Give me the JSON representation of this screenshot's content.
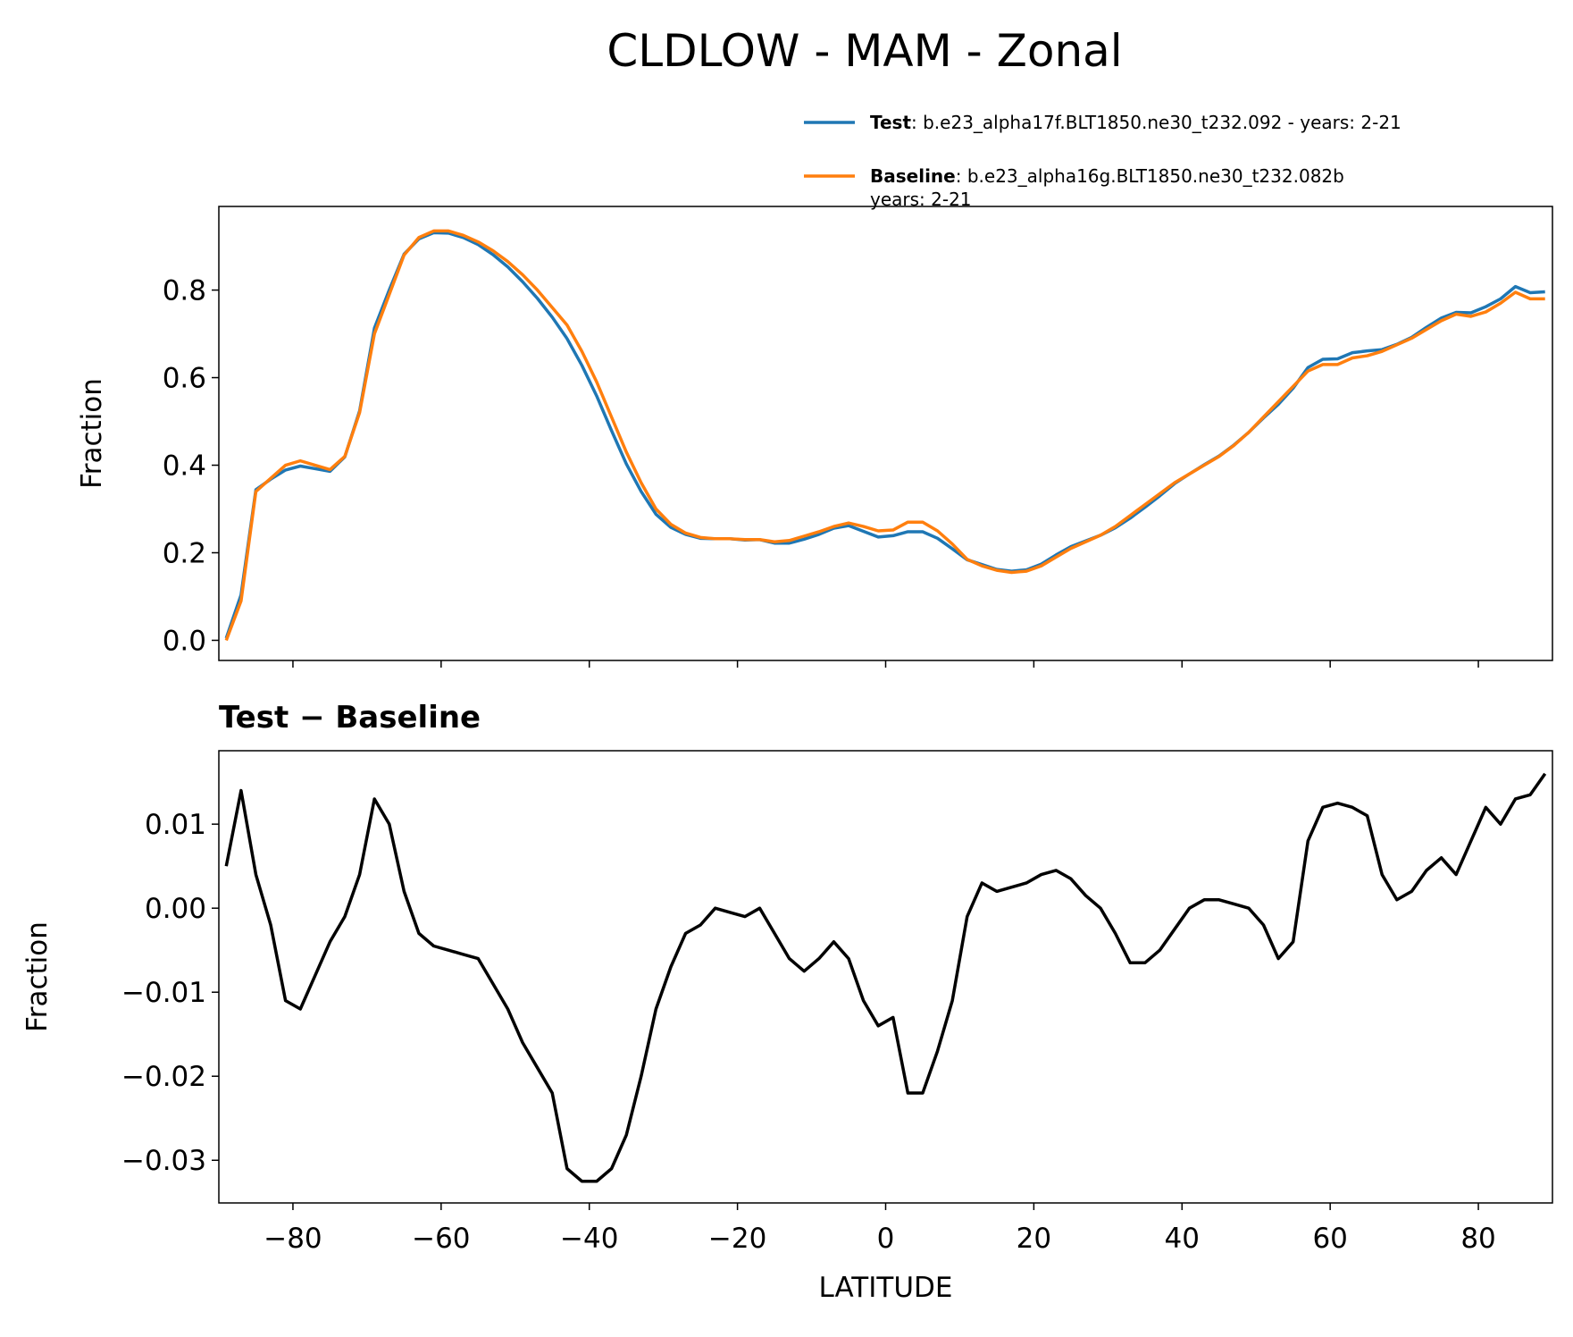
{
  "suptitle": "CLDLOW - MAM - Zonal",
  "chart_data": [
    {
      "type": "line",
      "ylabel": "Fraction",
      "x": [
        -89,
        -87,
        -85,
        -83,
        -81,
        -79,
        -77,
        -75,
        -73,
        -71,
        -69,
        -67,
        -65,
        -63,
        -61,
        -59,
        -57,
        -55,
        -53,
        -51,
        -49,
        -47,
        -45,
        -43,
        -41,
        -39,
        -37,
        -35,
        -33,
        -31,
        -29,
        -27,
        -25,
        -23,
        -21,
        -19,
        -17,
        -15,
        -13,
        -11,
        -9,
        -7,
        -5,
        -3,
        -1,
        1,
        3,
        5,
        7,
        9,
        11,
        13,
        15,
        17,
        19,
        21,
        23,
        25,
        27,
        29,
        31,
        33,
        35,
        37,
        39,
        41,
        43,
        45,
        47,
        49,
        51,
        53,
        55,
        57,
        59,
        61,
        63,
        65,
        67,
        69,
        71,
        73,
        75,
        77,
        79,
        81,
        83,
        85,
        87,
        89
      ],
      "series": [
        {
          "name": "Test",
          "label_lines": [
            ": b.e23_alpha17f.BLT1850.ne30_t232.092 - years: 2-21"
          ],
          "color": "#1f77b4",
          "values": [
            0.005,
            0.104,
            0.344,
            0.368,
            0.389,
            0.398,
            0.392,
            0.386,
            0.419,
            0.524,
            0.713,
            0.8,
            0.882,
            0.917,
            0.931,
            0.93,
            0.92,
            0.904,
            0.881,
            0.853,
            0.819,
            0.781,
            0.738,
            0.689,
            0.628,
            0.558,
            0.479,
            0.403,
            0.34,
            0.288,
            0.258,
            0.242,
            0.233,
            0.232,
            0.232,
            0.229,
            0.23,
            0.222,
            0.222,
            0.231,
            0.242,
            0.256,
            0.262,
            0.249,
            0.236,
            0.239,
            0.248,
            0.248,
            0.233,
            0.209,
            0.184,
            0.173,
            0.162,
            0.158,
            0.161,
            0.174,
            0.195,
            0.214,
            0.227,
            0.24,
            0.257,
            0.279,
            0.304,
            0.33,
            0.358,
            0.38,
            0.401,
            0.421,
            0.446,
            0.475,
            0.508,
            0.539,
            0.576,
            0.623,
            0.642,
            0.643,
            0.657,
            0.661,
            0.664,
            0.676,
            0.692,
            0.715,
            0.736,
            0.749,
            0.748,
            0.762,
            0.78,
            0.808,
            0.794,
            0.796
          ]
        },
        {
          "name": "Baseline",
          "label_lines": [
            ": b.e23_alpha16g.BLT1850.ne30_t232.082b",
            "years: 2-21"
          ],
          "color": "#ff7f0e",
          "values": [
            0.0,
            0.09,
            0.34,
            0.37,
            0.4,
            0.41,
            0.4,
            0.39,
            0.42,
            0.52,
            0.7,
            0.79,
            0.88,
            0.92,
            0.935,
            0.935,
            0.925,
            0.91,
            0.89,
            0.865,
            0.835,
            0.8,
            0.76,
            0.72,
            0.66,
            0.59,
            0.51,
            0.43,
            0.36,
            0.3,
            0.265,
            0.245,
            0.235,
            0.232,
            0.232,
            0.23,
            0.23,
            0.225,
            0.228,
            0.238,
            0.248,
            0.26,
            0.268,
            0.26,
            0.25,
            0.252,
            0.27,
            0.27,
            0.25,
            0.22,
            0.185,
            0.17,
            0.16,
            0.155,
            0.158,
            0.17,
            0.19,
            0.21,
            0.225,
            0.24,
            0.26,
            0.285,
            0.31,
            0.335,
            0.36,
            0.38,
            0.4,
            0.42,
            0.445,
            0.475,
            0.51,
            0.545,
            0.58,
            0.615,
            0.63,
            0.63,
            0.645,
            0.65,
            0.66,
            0.675,
            0.69,
            0.71,
            0.73,
            0.745,
            0.74,
            0.75,
            0.77,
            0.795,
            0.78,
            0.78
          ]
        }
      ],
      "xlim": [
        -90,
        90
      ],
      "xticks": [
        -80,
        -60,
        -40,
        -20,
        0,
        20,
        40,
        60,
        80
      ],
      "xtick_labels": false,
      "ylim": [
        -0.046,
        0.991
      ],
      "yticks": [
        {
          "value": 0,
          "label": "0.0"
        },
        0.2,
        0.4,
        0.6,
        0.8
      ]
    },
    {
      "type": "line",
      "title": "Test − Baseline",
      "xlabel": "LATITUDE",
      "ylabel": "Fraction",
      "x": [
        -89,
        -87,
        -85,
        -83,
        -81,
        -79,
        -77,
        -75,
        -73,
        -71,
        -69,
        -67,
        -65,
        -63,
        -61,
        -59,
        -57,
        -55,
        -53,
        -51,
        -49,
        -47,
        -45,
        -43,
        -41,
        -39,
        -37,
        -35,
        -33,
        -31,
        -29,
        -27,
        -25,
        -23,
        -21,
        -19,
        -17,
        -15,
        -13,
        -11,
        -9,
        -7,
        -5,
        -3,
        -1,
        1,
        3,
        5,
        7,
        9,
        11,
        13,
        15,
        17,
        19,
        21,
        23,
        25,
        27,
        29,
        31,
        33,
        35,
        37,
        39,
        41,
        43,
        45,
        47,
        49,
        51,
        53,
        55,
        57,
        59,
        61,
        63,
        65,
        67,
        69,
        71,
        73,
        75,
        77,
        79,
        81,
        83,
        85,
        87,
        89
      ],
      "color": "#000000",
      "values": [
        0.005,
        0.014,
        0.004,
        -0.002,
        -0.011,
        -0.012,
        -0.008,
        -0.004,
        -0.001,
        0.004,
        0.013,
        0.01,
        0.002,
        -0.003,
        -0.0045,
        -0.005,
        -0.0055,
        -0.006,
        -0.009,
        -0.012,
        -0.016,
        -0.019,
        -0.022,
        -0.031,
        -0.0325,
        -0.0325,
        -0.031,
        -0.027,
        -0.02,
        -0.012,
        -0.007,
        -0.003,
        -0.002,
        0.0,
        -0.0005,
        -0.001,
        0.0,
        -0.003,
        -0.006,
        -0.0075,
        -0.006,
        -0.004,
        -0.006,
        -0.011,
        -0.014,
        -0.013,
        -0.022,
        -0.022,
        -0.017,
        -0.011,
        -0.001,
        0.003,
        0.002,
        0.0025,
        0.003,
        0.004,
        0.0045,
        0.0035,
        0.0015,
        0.0,
        -0.003,
        -0.0065,
        -0.0065,
        -0.005,
        -0.0025,
        0.0,
        0.001,
        0.001,
        0.0005,
        0.0,
        -0.002,
        -0.006,
        -0.004,
        0.008,
        0.012,
        0.0125,
        0.012,
        0.011,
        0.004,
        0.001,
        0.002,
        0.0045,
        0.006,
        0.004,
        0.008,
        0.012,
        0.01,
        0.013,
        0.0135,
        0.016
      ],
      "xlim": [
        -90,
        90
      ],
      "xticks": [
        {
          "value": -80,
          "label": "−80"
        },
        {
          "value": -60,
          "label": "−60"
        },
        {
          "value": -40,
          "label": "−40"
        },
        {
          "value": -20,
          "label": "−20"
        },
        0,
        20,
        40,
        60,
        80
      ],
      "xtick_labels": true,
      "ylim": [
        -0.03508,
        0.01874
      ],
      "yticks": [
        {
          "value": -0.03,
          "label": "−0.03"
        },
        {
          "value": -0.02,
          "label": "−0.02"
        },
        {
          "value": -0.01,
          "label": "−0.01"
        },
        {
          "value": 0,
          "label": "0.00"
        },
        0.01
      ]
    }
  ]
}
